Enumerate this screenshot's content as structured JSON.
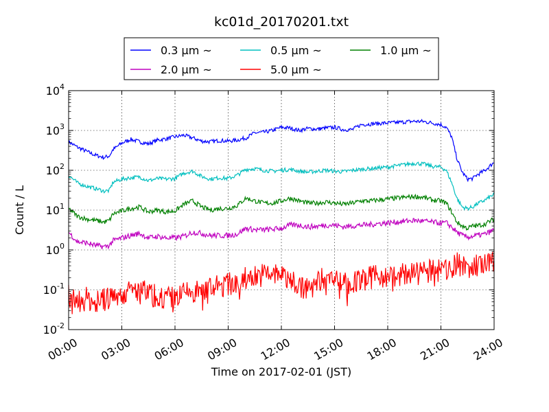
{
  "chart_data": {
    "type": "line",
    "title": "kc01d_20170201.txt",
    "xlabel": "Time on 2017-02-01 (JST)",
    "ylabel": "Count / L",
    "x_ticks": [
      "00:00",
      "03:00",
      "06:00",
      "09:00",
      "12:00",
      "15:00",
      "18:00",
      "21:00",
      "24:00"
    ],
    "x_range_hours": [
      0,
      24
    ],
    "y_scale": "log",
    "ylim": [
      0.01,
      10000
    ],
    "y_ticks": [
      {
        "base": "10",
        "exp": "-2",
        "value": 0.01
      },
      {
        "base": "10",
        "exp": "-1",
        "value": 0.1
      },
      {
        "base": "10",
        "exp": "0",
        "value": 1
      },
      {
        "base": "10",
        "exp": "1",
        "value": 10
      },
      {
        "base": "10",
        "exp": "2",
        "value": 100
      },
      {
        "base": "10",
        "exp": "3",
        "value": 1000
      },
      {
        "base": "10",
        "exp": "4",
        "value": 10000
      }
    ],
    "grid": true,
    "legend_position": "top-center",
    "series": [
      {
        "name": "0.3 μm ~",
        "color": "#0000ff",
        "x_hours": [
          0,
          0.5,
          1,
          1.5,
          2,
          2.3,
          2.5,
          3,
          3.5,
          4,
          4.5,
          5,
          5.5,
          6,
          6.5,
          7,
          7.5,
          8,
          8.5,
          9,
          9.5,
          10,
          10.5,
          11,
          11.5,
          12,
          12.5,
          13,
          13.5,
          14,
          14.5,
          15,
          15.5,
          16,
          16.5,
          17,
          17.5,
          18,
          18.5,
          19,
          19.5,
          20,
          20.5,
          21,
          21.3,
          21.6,
          21.9,
          22.2,
          22.5,
          22.8,
          23,
          23.5,
          24
        ],
        "values": [
          520,
          380,
          300,
          240,
          210,
          230,
          330,
          480,
          600,
          520,
          460,
          570,
          620,
          690,
          760,
          650,
          540,
          520,
          560,
          540,
          570,
          650,
          870,
          900,
          1000,
          1200,
          1150,
          1000,
          1120,
          1080,
          1150,
          1200,
          1050,
          1050,
          1400,
          1450,
          1500,
          1550,
          1580,
          1650,
          1700,
          1680,
          1550,
          1400,
          1200,
          700,
          200,
          90,
          60,
          62,
          75,
          100,
          160
        ]
      },
      {
        "name": "0.5 μm ~",
        "color": "#00bfbf",
        "x_hours": [
          0,
          0.5,
          1,
          1.5,
          2,
          2.3,
          2.5,
          3,
          3.5,
          4,
          4.5,
          5,
          5.5,
          6,
          6.5,
          7,
          7.5,
          8,
          8.5,
          9,
          9.5,
          10,
          10.5,
          11,
          11.5,
          12,
          12.5,
          13,
          13.5,
          14,
          14.5,
          15,
          15.5,
          16,
          16.5,
          17,
          17.5,
          18,
          18.5,
          19,
          19.5,
          20,
          20.5,
          21,
          21.3,
          21.6,
          21.9,
          22.2,
          22.5,
          22.8,
          23,
          23.5,
          24
        ],
        "values": [
          75,
          48,
          40,
          35,
          30,
          31,
          50,
          60,
          65,
          68,
          55,
          62,
          60,
          62,
          85,
          95,
          70,
          60,
          65,
          62,
          75,
          105,
          110,
          100,
          95,
          100,
          105,
          95,
          90,
          95,
          100,
          95,
          92,
          100,
          105,
          110,
          115,
          120,
          130,
          140,
          150,
          145,
          125,
          120,
          100,
          50,
          20,
          12,
          11,
          12,
          14,
          18,
          25
        ]
      },
      {
        "name": "1.0 μm ~",
        "color": "#008000",
        "x_hours": [
          0,
          0.5,
          1,
          1.5,
          2,
          2.3,
          2.5,
          3,
          3.5,
          4,
          4.5,
          5,
          5.5,
          6,
          6.5,
          7,
          7.5,
          8,
          8.5,
          9,
          9.5,
          10,
          10.5,
          11,
          11.5,
          12,
          12.5,
          13,
          13.5,
          14,
          14.5,
          15,
          15.5,
          16,
          16.5,
          17,
          17.5,
          18,
          18.5,
          19,
          19.5,
          20,
          20.5,
          21,
          21.3,
          21.6,
          21.9,
          22.2,
          22.5,
          22.8,
          23,
          23.5,
          24
        ],
        "values": [
          11,
          7,
          6,
          5.5,
          5,
          5.5,
          8,
          9.5,
          11,
          12,
          9,
          10,
          9,
          9.5,
          14,
          17,
          12,
          10,
          11,
          11,
          13,
          20,
          17,
          15,
          15,
          17,
          20,
          17,
          15,
          15,
          16,
          15,
          14,
          15,
          17,
          17,
          18,
          19,
          20,
          21,
          22,
          21,
          18,
          17,
          15,
          9,
          5,
          4,
          3.5,
          4,
          4,
          4.5,
          6
        ]
      },
      {
        "name": "2.0 μm ~",
        "color": "#bf00bf",
        "x_hours": [
          0,
          0.5,
          1,
          1.5,
          2,
          2.3,
          2.5,
          3,
          3.5,
          4,
          4.5,
          5,
          5.5,
          6,
          6.5,
          7,
          7.5,
          8,
          8.5,
          9,
          9.5,
          10,
          10.5,
          11,
          11.5,
          12,
          12.5,
          13,
          13.5,
          14,
          14.5,
          15,
          15.5,
          16,
          16.5,
          17,
          17.5,
          18,
          18.5,
          19,
          19.5,
          20,
          20.5,
          21,
          21.3,
          21.6,
          21.9,
          22.2,
          22.5,
          22.8,
          23,
          23.5,
          24
        ],
        "values": [
          2.8,
          1.6,
          1.5,
          1.3,
          1.2,
          1.3,
          1.7,
          2,
          2.3,
          2.6,
          2,
          2.2,
          2,
          2,
          2.2,
          2.8,
          2.6,
          2.3,
          2.3,
          2.3,
          2.5,
          3.5,
          3.2,
          3.2,
          3.3,
          3.5,
          4.2,
          4.2,
          3.8,
          3.9,
          4.2,
          4.2,
          3.8,
          4,
          4.2,
          4.3,
          4.6,
          4.8,
          5,
          5.3,
          5.5,
          5.3,
          5,
          4.7,
          4.8,
          3.8,
          2.8,
          2.3,
          2.1,
          2.2,
          2.3,
          2.5,
          3.2
        ]
      },
      {
        "name": "5.0 μm ~",
        "color": "#ff0000",
        "x_hours": [
          0,
          0.5,
          1,
          1.5,
          2,
          2.3,
          2.5,
          3,
          3.5,
          4,
          4.5,
          5,
          5.5,
          6,
          6.5,
          7,
          7.5,
          8,
          8.5,
          9,
          9.5,
          10,
          10.5,
          11,
          11.5,
          12,
          12.5,
          13,
          13.5,
          14,
          14.5,
          15,
          15.5,
          16,
          16.5,
          17,
          17.5,
          18,
          18.5,
          19,
          19.5,
          20,
          20.5,
          21,
          21.3,
          21.6,
          21.9,
          22.2,
          22.5,
          22.8,
          23,
          23.5,
          24
        ],
        "values": [
          0.08,
          0.05,
          0.06,
          0.05,
          0.055,
          0.06,
          0.07,
          0.08,
          0.09,
          0.1,
          0.08,
          0.07,
          0.06,
          0.065,
          0.08,
          0.09,
          0.09,
          0.11,
          0.12,
          0.14,
          0.15,
          0.2,
          0.22,
          0.24,
          0.25,
          0.22,
          0.2,
          0.12,
          0.1,
          0.15,
          0.22,
          0.2,
          0.15,
          0.14,
          0.18,
          0.2,
          0.22,
          0.24,
          0.22,
          0.25,
          0.3,
          0.3,
          0.28,
          0.3,
          0.32,
          0.35,
          0.45,
          0.4,
          0.38,
          0.35,
          0.4,
          0.42,
          0.45
        ]
      }
    ]
  }
}
